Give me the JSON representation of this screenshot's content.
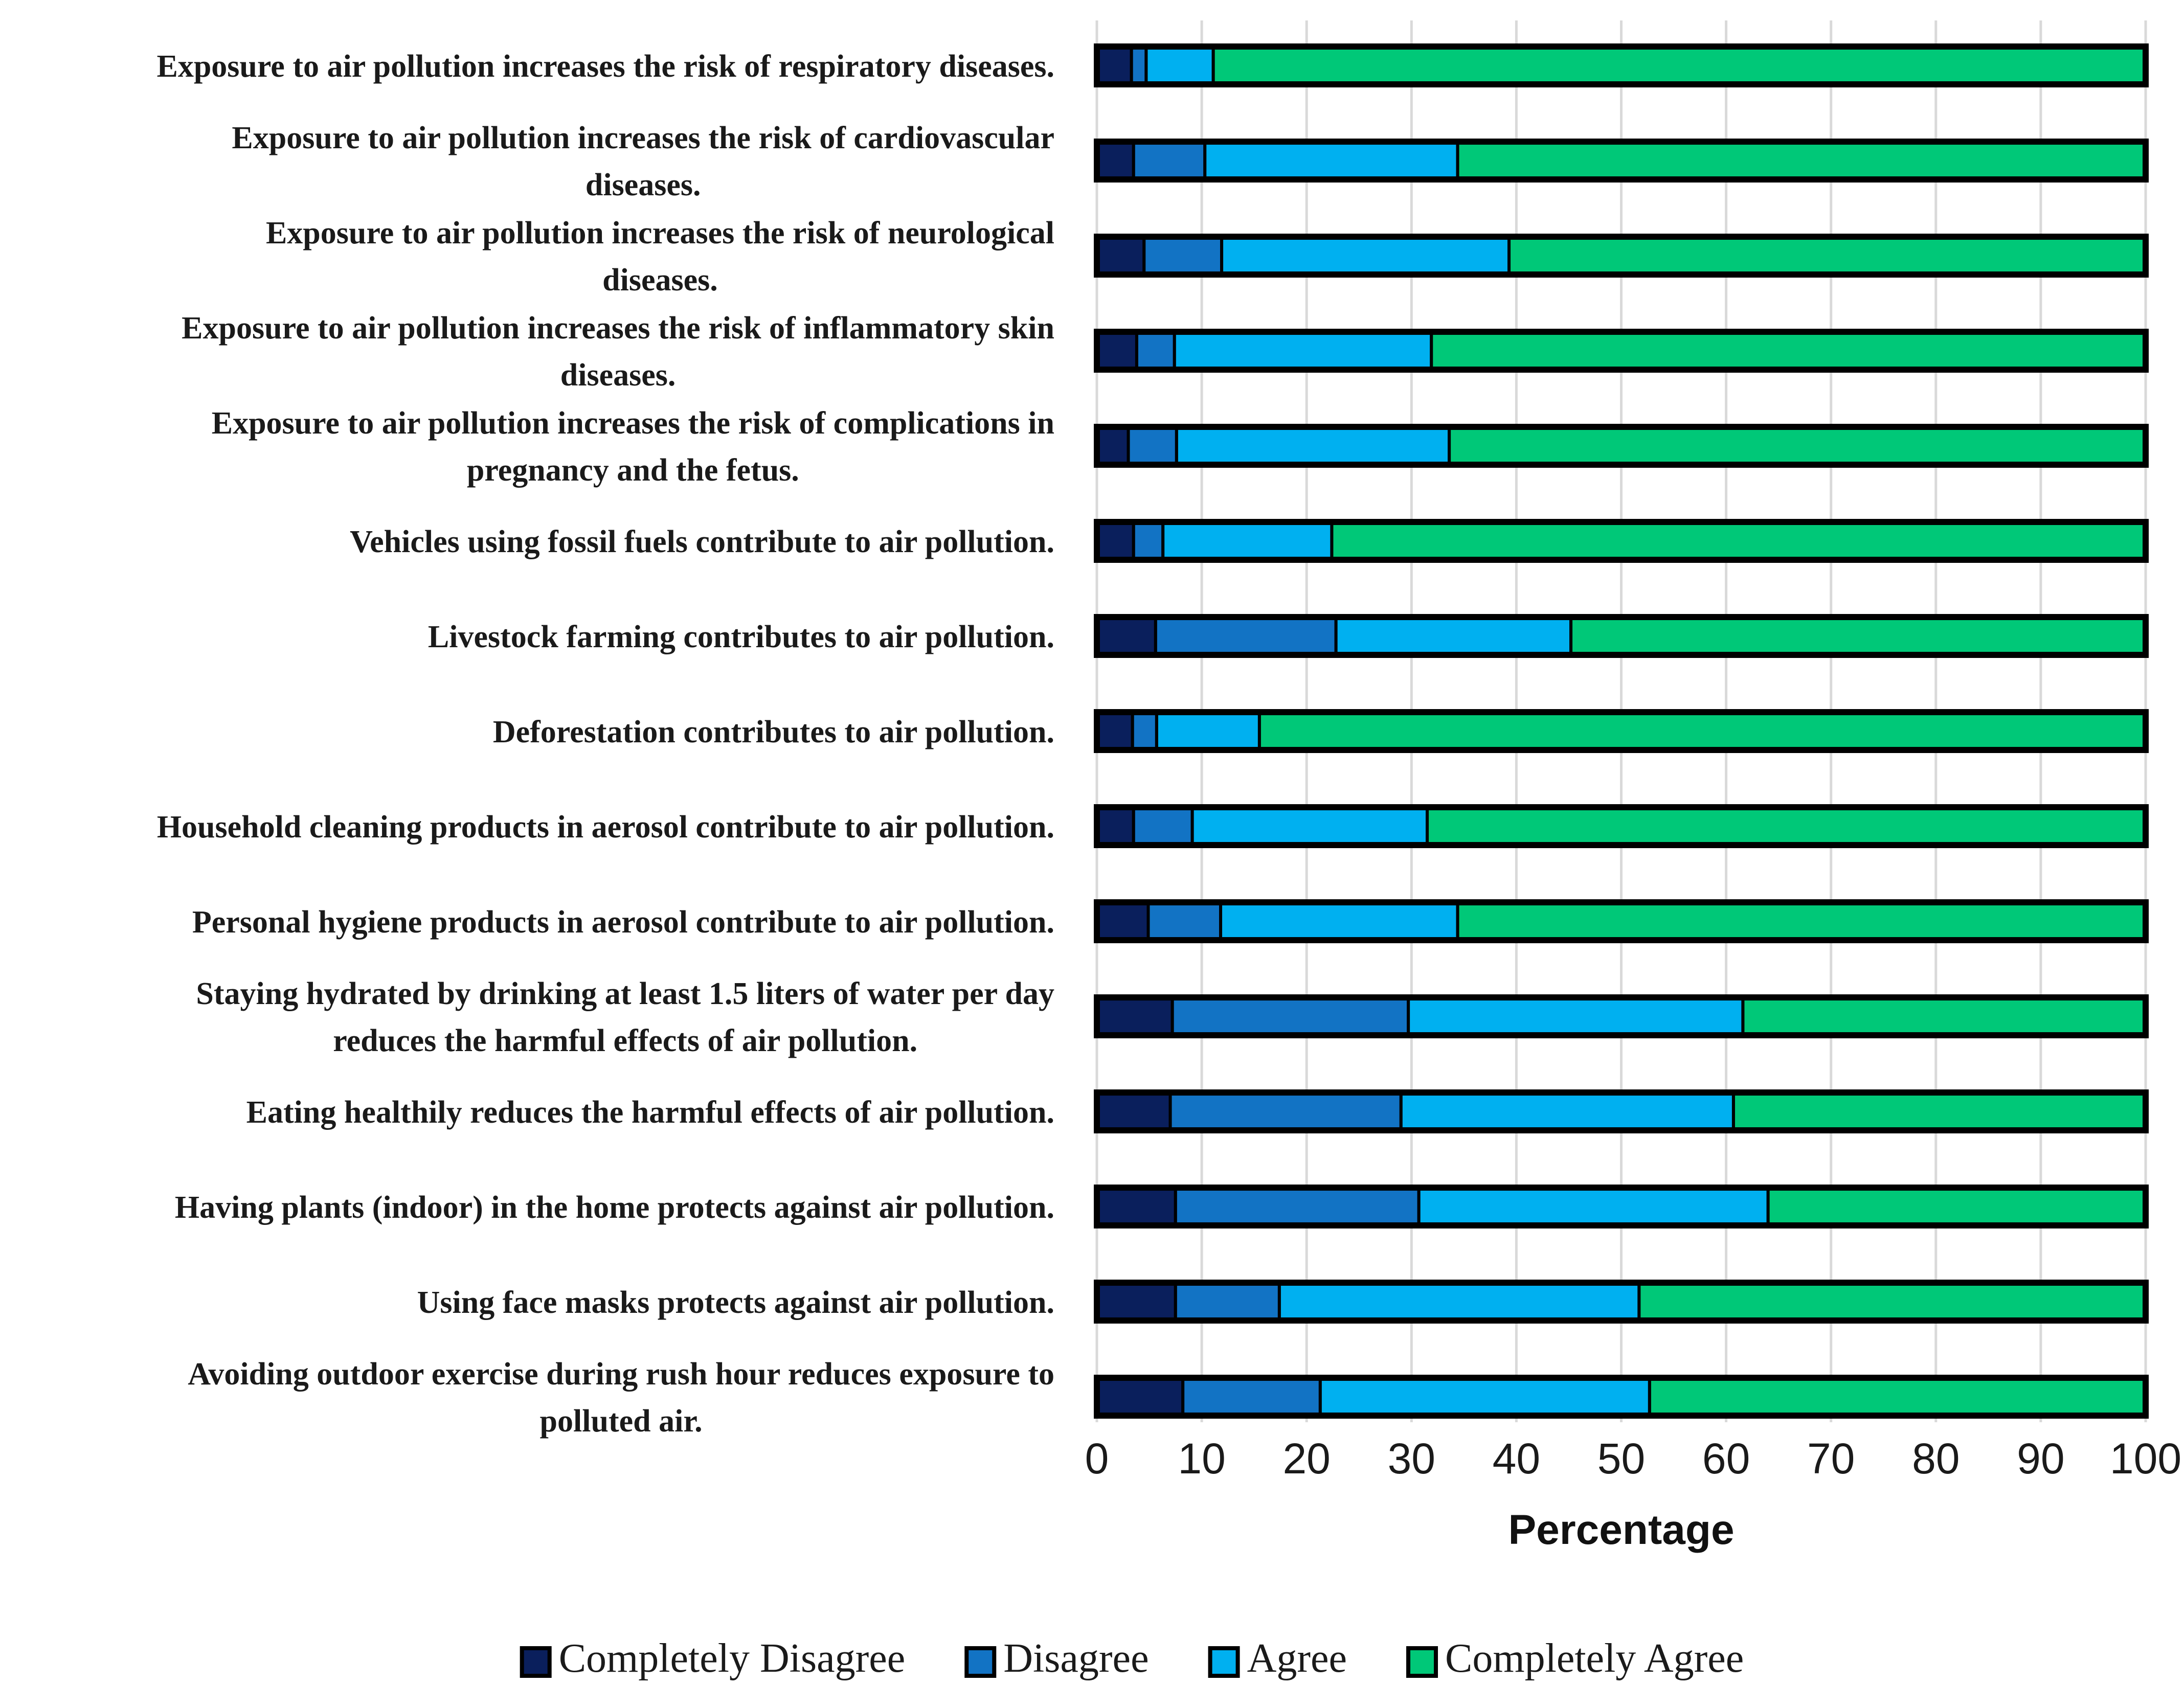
{
  "chart_data": {
    "type": "bar",
    "orientation": "horizontal",
    "stacked": true,
    "title": "",
    "xlabel": "Percentage",
    "ylabel": "",
    "xlim": [
      0,
      100
    ],
    "xticks": [
      "0",
      "10",
      "20",
      "30",
      "40",
      "50",
      "60",
      "70",
      "80",
      "90",
      "100"
    ],
    "grid": true,
    "legend_position": "bottom",
    "categories": [
      [
        "Exposure to air pollution increases the risk of respiratory diseases."
      ],
      [
        "Exposure to air pollution increases the risk of cardiovascular",
        "diseases."
      ],
      [
        "Exposure to air pollution increases the risk of neurological",
        "diseases."
      ],
      [
        "Exposure to air pollution increases the risk of inflammatory skin",
        "diseases."
      ],
      [
        "Exposure to air pollution increases the risk of complications in",
        "pregnancy and the fetus."
      ],
      [
        "Vehicles using fossil fuels contribute to air pollution."
      ],
      [
        "Livestock farming contributes to air pollution."
      ],
      [
        "Deforestation contributes to air pollution."
      ],
      [
        "Household cleaning products in aerosol contribute to air pollution."
      ],
      [
        "Personal hygiene products in aerosol contribute to air pollution."
      ],
      [
        "Staying hydrated by drinking at least 1.5 liters of water per day",
        "reduces the harmful effects of air pollution."
      ],
      [
        "Eating healthily reduces the harmful effects of air pollution."
      ],
      [
        "Having plants (indoor) in the home protects against air pollution."
      ],
      [
        "Using face masks protects against air pollution."
      ],
      [
        "Avoiding outdoor exercise during rush hour reduces exposure to",
        "polluted air."
      ]
    ],
    "series": [
      {
        "name": "Completely Disagree",
        "color": "#0a1f5c",
        "values": [
          3.3,
          3.5,
          4.5,
          3.8,
          3.0,
          3.5,
          5.6,
          3.4,
          3.5,
          4.9,
          7.2,
          7.0,
          7.5,
          7.5,
          8.2
        ]
      },
      {
        "name": "Disagree",
        "color": "#1273c4",
        "values": [
          1.4,
          6.8,
          7.4,
          3.6,
          4.6,
          2.8,
          17.2,
          2.3,
          5.6,
          6.9,
          22.5,
          22.0,
          23.2,
          9.9,
          13.1
        ]
      },
      {
        "name": "Agree",
        "color": "#00b0f0",
        "values": [
          6.4,
          24.1,
          27.4,
          24.5,
          26.0,
          16.1,
          22.4,
          9.8,
          22.4,
          22.6,
          31.9,
          31.7,
          33.3,
          34.3,
          31.4
        ]
      },
      {
        "name": "Completely Agree",
        "color": "#00c878",
        "values": [
          88.9,
          65.6,
          60.7,
          68.1,
          66.4,
          77.6,
          54.8,
          84.5,
          68.5,
          65.6,
          38.4,
          39.3,
          36.0,
          48.3,
          47.3
        ]
      }
    ]
  }
}
